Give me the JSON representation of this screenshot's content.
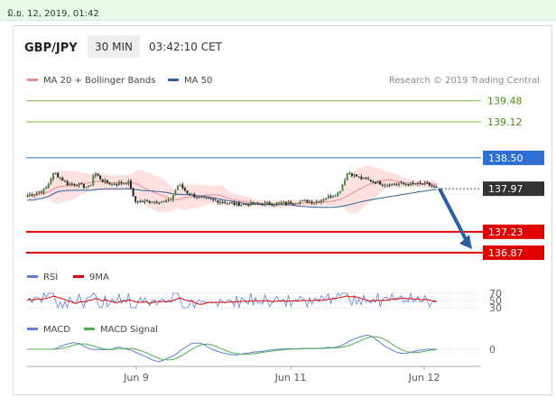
{
  "datetime": "มิ.ย. 12, 2019, 01:42",
  "header": {
    "symbol": "GBP/JPY",
    "timeframe": "30 MIN",
    "time": "03:42:10 CET"
  },
  "legend": [
    {
      "label": "MA 20 + Bollinger Bands",
      "color": "#f08a8a"
    },
    {
      "label": "MA 50",
      "color": "#2f5f9e"
    }
  ],
  "source": "Research © 2019 Trading Central",
  "colors": {
    "resistance": "#7cb342",
    "pivot": "#2e6fd6",
    "support": "#e00000",
    "current": "#333333",
    "arrow": "#2c5f9e",
    "band": "#fde0e0"
  },
  "chart_data": [
    {
      "type": "line",
      "subtype": "candlestick",
      "x_ticks": [
        "Jun 9",
        "Jun 11",
        "Jun 12"
      ],
      "ylim": [
        136.7,
        139.6
      ],
      "series": [
        {
          "name": "MA 20 + Bollinger Bands"
        },
        {
          "name": "MA 50"
        }
      ],
      "levels": [
        {
          "label": "139.48",
          "value": 139.48,
          "kind": "resistance"
        },
        {
          "label": "139.12",
          "value": 139.12,
          "kind": "resistance"
        },
        {
          "label": "138.50",
          "value": 138.5,
          "kind": "pivot"
        },
        {
          "label": "137.97",
          "value": 137.97,
          "kind": "current"
        },
        {
          "label": "137.23",
          "value": 137.23,
          "kind": "support"
        },
        {
          "label": "136.87",
          "value": 136.87,
          "kind": "support"
        }
      ],
      "forecast": {
        "from": 137.97,
        "to": 136.87,
        "direction": "down"
      }
    },
    {
      "type": "line",
      "title": "RSI",
      "series": [
        {
          "name": "RSI",
          "color": "#5b7fd6"
        },
        {
          "name": "9MA",
          "color": "#e00000"
        }
      ],
      "levels": [
        {
          "label": "70",
          "value": 70
        },
        {
          "label": "50",
          "value": 50
        },
        {
          "label": "30",
          "value": 30
        }
      ]
    },
    {
      "type": "line",
      "title": "MACD",
      "series": [
        {
          "name": "MACD",
          "color": "#5b7fd6"
        },
        {
          "name": "MACD Signal",
          "color": "#4caf50"
        }
      ],
      "levels": [
        {
          "label": "0",
          "value": 0
        }
      ]
    }
  ]
}
